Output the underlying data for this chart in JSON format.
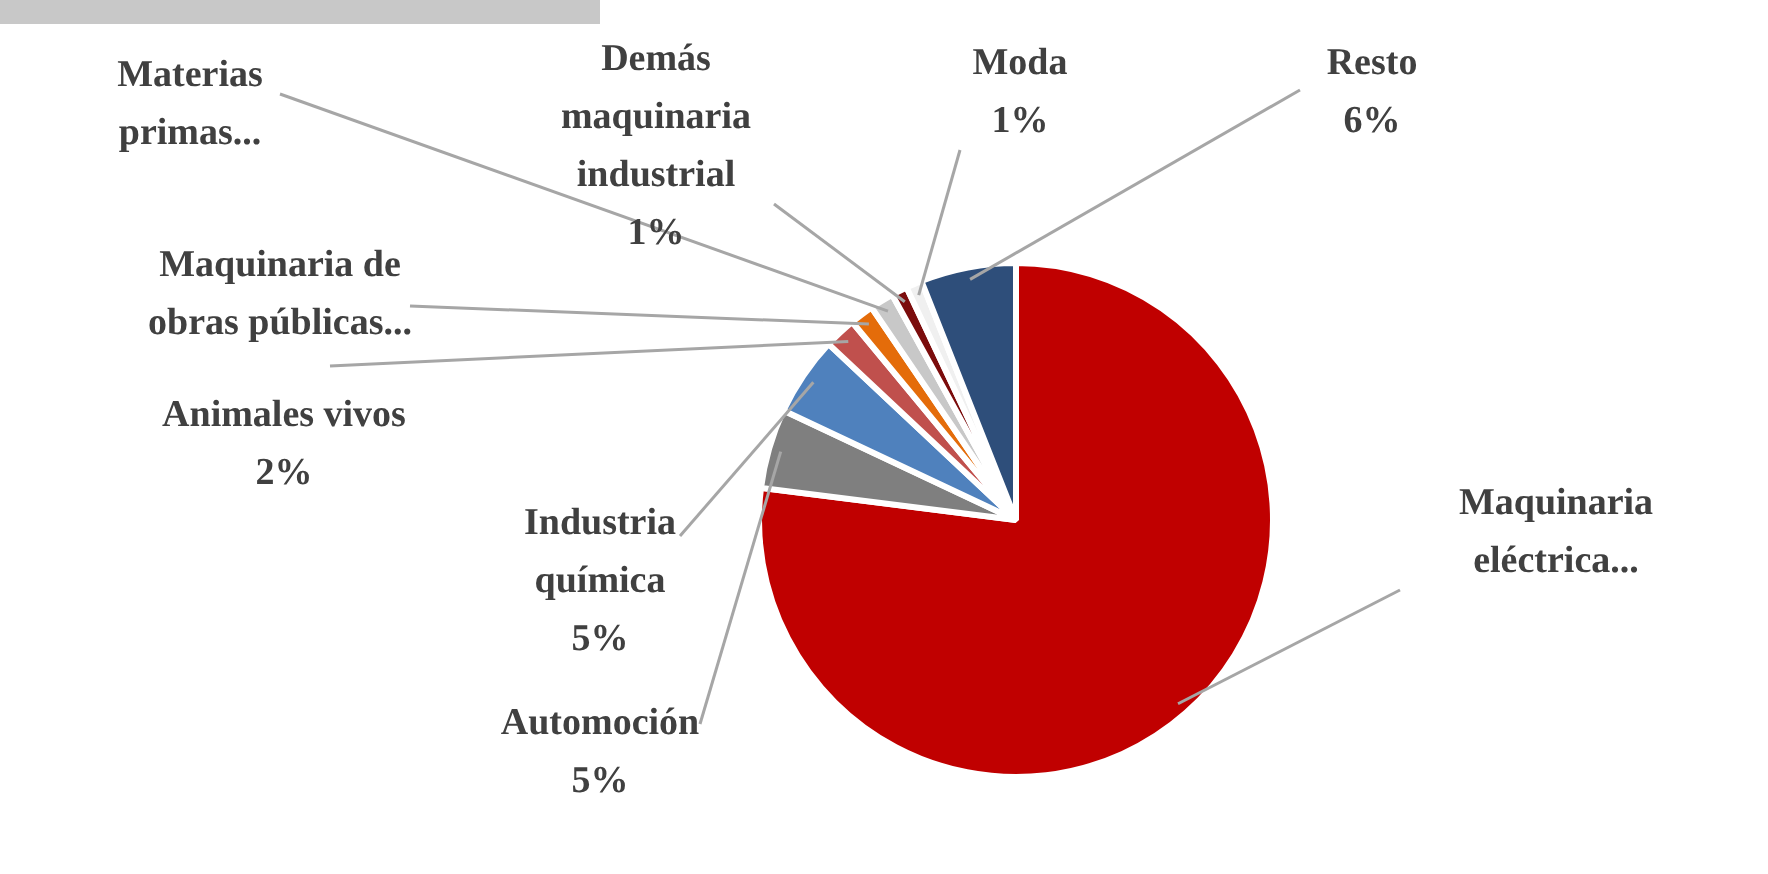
{
  "chart_data": {
    "type": "pie",
    "categories": [
      "Maquinaria eléctrica...",
      "Automoción",
      "Industria química",
      "Animales vivos",
      "Maquinaria de obras públicas...",
      "Materias primas...",
      "Demás maquinaria industrial",
      "Moda",
      "Resto"
    ],
    "values": [
      77,
      5,
      5,
      2,
      1.5,
      1.5,
      1,
      1,
      6
    ],
    "value_labels": [
      null,
      "5%",
      "5%",
      "2%",
      null,
      null,
      "1%",
      "1%",
      "6%"
    ],
    "colors": [
      "#c00000",
      "#7f7f7f",
      "#4f81bd",
      "#c0504d",
      "#e46c0a",
      "#c8c8c8",
      "#7b0c0c",
      "#f0f0f0",
      "#2e4e7a"
    ],
    "legend": false
  }
}
